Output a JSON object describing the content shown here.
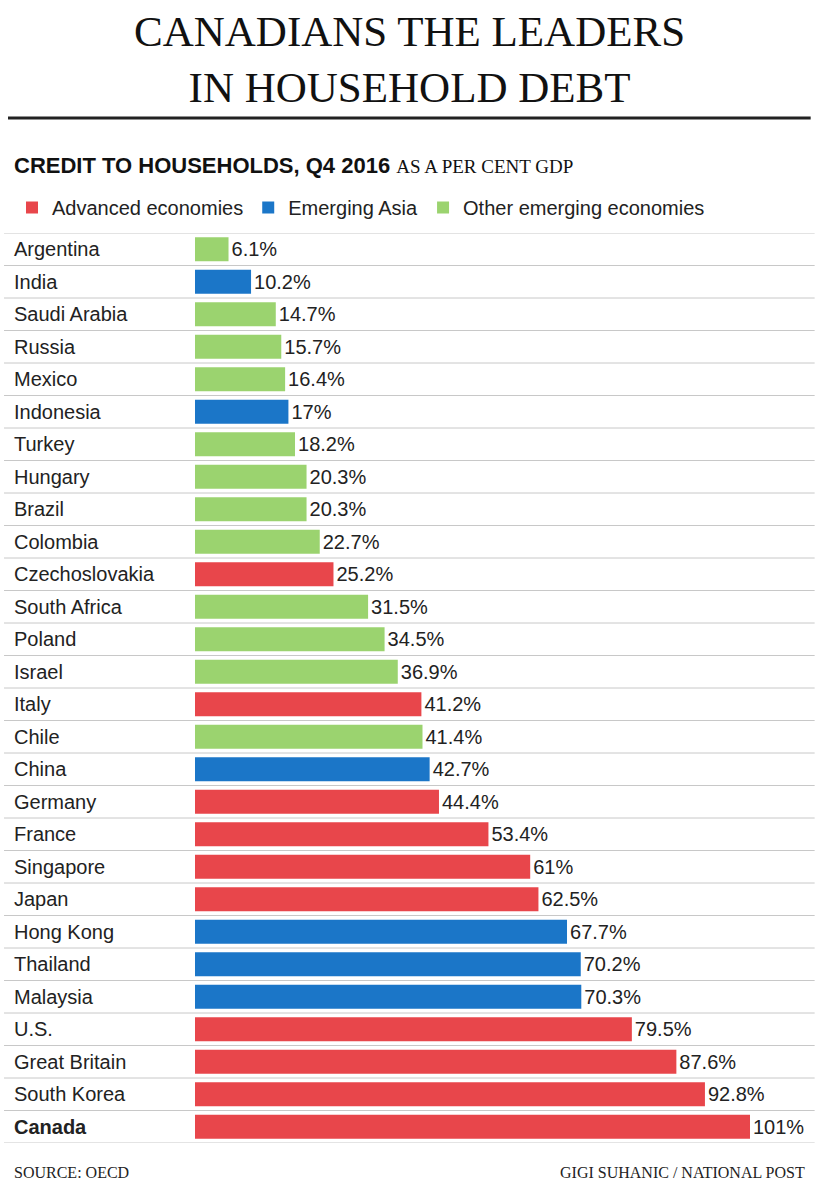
{
  "chart_data": {
    "type": "bar",
    "orientation": "horizontal",
    "title": "CANADIANS THE LEADERS\nIN HOUSEHOLD DEBT",
    "subtitle": [
      "CREDIT TO HOUSEHOLDS, Q4 2016",
      "AS A PER CENT GDP"
    ],
    "source": "SOURCE: OECD",
    "credit": "GIGI SUHANIC / NATIONAL POST",
    "categories": [
      "Argentina",
      "India",
      "Saudi Arabia",
      "Russia",
      "Mexico",
      "Indonesia",
      "Turkey",
      "Hungary",
      "Brazil",
      "Colombia",
      "Czechoslovakia",
      "South Africa",
      "Poland",
      "Israel",
      "Italy",
      "Chile",
      "China",
      "Germany",
      "France",
      "Singapore",
      "Japan",
      "Hong Kong",
      "Thailand",
      "Malaysia",
      "U.S.",
      "Great Britain",
      "South Korea",
      "Canada"
    ],
    "series": [
      {
        "name": "Advanced economies",
        "color": "#e8464b",
        "values": [
          null,
          null,
          null,
          null,
          null,
          null,
          null,
          null,
          null,
          null,
          25.2,
          null,
          null,
          null,
          41.2,
          null,
          null,
          44.4,
          53.4,
          61,
          62.5,
          null,
          null,
          null,
          79.5,
          87.6,
          92.8,
          101
        ],
        "value_labels": [
          null,
          null,
          null,
          null,
          null,
          null,
          null,
          null,
          null,
          null,
          "25.2%",
          null,
          null,
          null,
          "41.2%",
          null,
          null,
          "44.4%",
          "53.4%",
          "61%",
          "62.5%",
          null,
          null,
          null,
          "79.5%",
          "87.6%",
          "92.8%",
          "101%"
        ]
      },
      {
        "name": "Emerging Asia",
        "color": "#1b76c8",
        "values": [
          null,
          10.2,
          null,
          null,
          null,
          17,
          null,
          null,
          null,
          null,
          null,
          null,
          null,
          null,
          null,
          null,
          42.7,
          null,
          null,
          null,
          null,
          67.7,
          70.2,
          70.3,
          null,
          null,
          null,
          null
        ],
        "value_labels": [
          null,
          "10.2%",
          null,
          null,
          null,
          "17%",
          null,
          null,
          null,
          null,
          null,
          null,
          null,
          null,
          null,
          null,
          "42.7%",
          null,
          null,
          null,
          null,
          "67.7%",
          "70.2%",
          "70.3%",
          null,
          null,
          null,
          null
        ]
      },
      {
        "name": "Other emerging economies",
        "color": "#9bd36f",
        "values": [
          6.1,
          null,
          14.7,
          15.7,
          16.4,
          null,
          18.2,
          20.3,
          20.3,
          22.7,
          null,
          31.5,
          34.5,
          36.9,
          null,
          41.4,
          null,
          null,
          null,
          null,
          null,
          null,
          null,
          null,
          null,
          null,
          null,
          null
        ],
        "value_labels": [
          "6.1%",
          null,
          "14.7%",
          "15.7%",
          "16.4%",
          null,
          "18.2%",
          "20.3%",
          "20.3%",
          "22.7%",
          null,
          "31.5%",
          "34.5%",
          "36.9%",
          null,
          "41.4%",
          null,
          null,
          null,
          null,
          null,
          null,
          null,
          null,
          null,
          null,
          null,
          null
        ]
      }
    ],
    "xlim": [
      0,
      101
    ],
    "data_labels": true,
    "tick_labels": "y",
    "grid": true,
    "legend": "top left"
  }
}
